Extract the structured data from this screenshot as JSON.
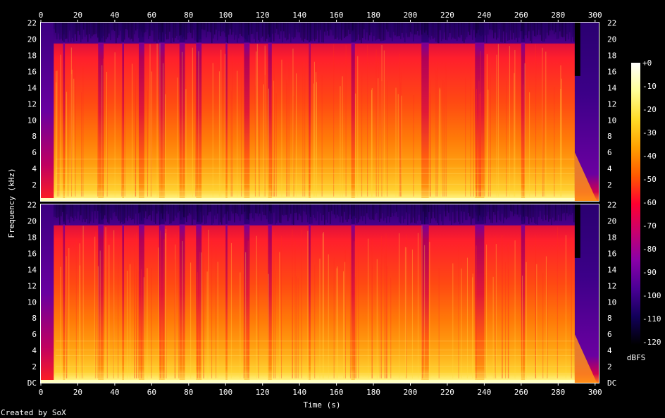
{
  "chart_data": {
    "type": "heatmap",
    "title": "",
    "xlabel": "Time (s)",
    "ylabel": "Frequency (kHz)",
    "colorbar_unit": "dBFS",
    "credit": "Created by SoX",
    "x_ticks": [
      0,
      20,
      40,
      60,
      80,
      100,
      120,
      140,
      160,
      180,
      200,
      220,
      240,
      260,
      280,
      300
    ],
    "xlim": [
      0,
      302
    ],
    "y_ticks": [
      "DC",
      "2",
      "4",
      "6",
      "8",
      "10",
      "12",
      "14",
      "16",
      "18",
      "20",
      "22"
    ],
    "ylim_khz": [
      0,
      22.05
    ],
    "channels": 2,
    "colorbar_ticks": [
      "+0",
      "-10",
      "-20",
      "-30",
      "-40",
      "-50",
      "-60",
      "-70",
      "-80",
      "-90",
      "-100",
      "-110",
      "-120"
    ],
    "colorbar_range_db": [
      -120,
      0
    ],
    "palette": [
      "#000000",
      "#12005a",
      "#4b0096",
      "#8a00a8",
      "#c8006e",
      "#ff0030",
      "#ff5a00",
      "#ffa000",
      "#ffdc28",
      "#ffff96",
      "#ffffff"
    ],
    "signal_end_s": 289,
    "upper_band_cutoff_khz": 19.5,
    "loud_sections_s": [
      [
        7,
        12
      ],
      [
        13,
        31
      ],
      [
        34,
        44
      ],
      [
        45,
        53
      ],
      [
        56,
        64
      ],
      [
        67,
        75
      ],
      [
        78,
        84
      ],
      [
        87,
        100
      ],
      [
        101,
        110
      ],
      [
        113,
        123
      ],
      [
        125,
        145
      ],
      [
        146,
        168
      ],
      [
        170,
        206
      ],
      [
        210,
        235
      ],
      [
        240,
        260
      ],
      [
        262,
        289
      ]
    ]
  }
}
